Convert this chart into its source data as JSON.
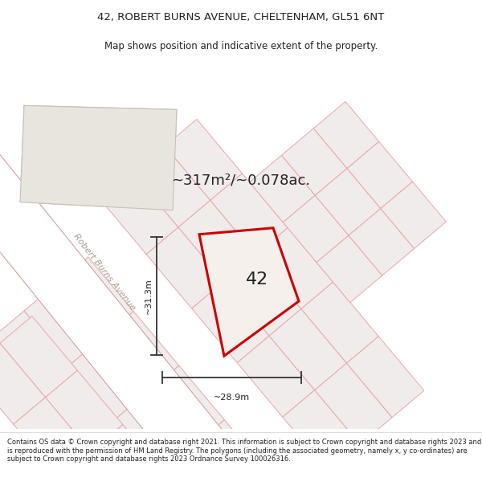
{
  "title_line1": "42, ROBERT BURNS AVENUE, CHELTENHAM, GL51 6NT",
  "title_line2": "Map shows position and indicative extent of the property.",
  "area_text": "~317m²/~0.078ac.",
  "property_number": "42",
  "dim_vertical": "~31.3m",
  "dim_horizontal": "~28.9m",
  "street_label": "Robert Burns Avenue",
  "footer_text": "Contains OS data © Crown copyright and database right 2021. This information is subject to Crown copyright and database rights 2023 and is reproduced with the permission of HM Land Registry. The polygons (including the associated geometry, namely x, y co-ordinates) are subject to Crown copyright and database rights 2023 Ordnance Survey 100026316.",
  "map_bg": "#ede8e2",
  "road_color": "#ffffff",
  "plot_fill": "#e8e2dc",
  "building_fill": "#ddd8d2",
  "highlight_color": "#cc0000",
  "grid_line_color": "#e8a8a8",
  "dim_line_color": "#333333",
  "text_color": "#222222",
  "title_bg": "#ffffff",
  "footer_bg": "#ffffff",
  "road_label_color": "#aaa090",
  "title_fontsize": 9.5,
  "subtitle_fontsize": 8.5,
  "area_fontsize": 13,
  "dim_fontsize": 8,
  "num_fontsize": 16,
  "street_fontsize": 8
}
